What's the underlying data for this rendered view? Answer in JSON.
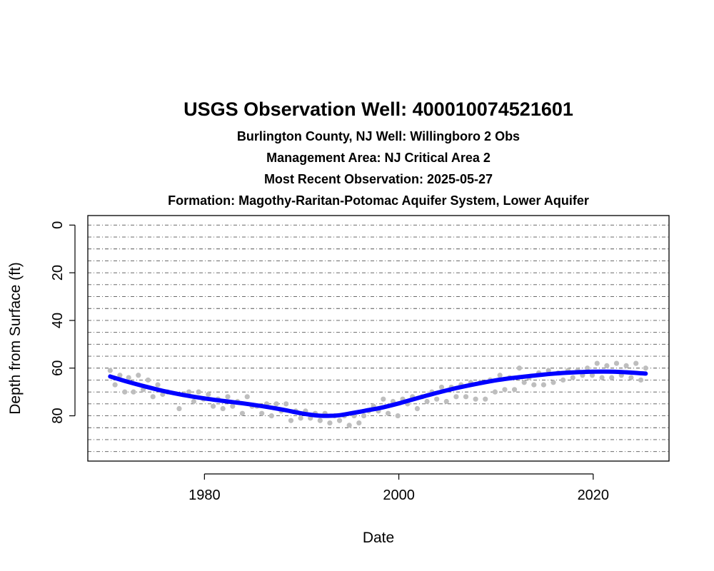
{
  "chart_data": {
    "type": "scatter",
    "title": "USGS Observation Well:  400010074521601",
    "subtitles": [
      "Burlington County, NJ    Well: Willingboro 2 Obs",
      "Management Area: NJ Critical Area 2",
      "Most Recent Observation: 2025-05-27",
      "Formation: Magothy-Raritan-Potomac Aquifer System, Lower Aquifer"
    ],
    "xlabel": "Date",
    "ylabel": "Depth from Surface (ft)",
    "xlim": [
      1968.0,
      2027.8
    ],
    "ylim": [
      99,
      -4
    ],
    "y_reversed": true,
    "x_ticks": [
      1980,
      2000,
      2020
    ],
    "y_ticks": [
      0,
      20,
      40,
      60,
      80
    ],
    "gridlines_y": [
      0,
      5,
      10,
      15,
      20,
      25,
      30,
      35,
      40,
      45,
      50,
      55,
      60,
      65,
      70,
      75,
      80,
      85,
      90,
      95
    ],
    "grid": "horizontal dash-dot",
    "series": [
      {
        "kind": "points",
        "color": "#bebebe",
        "x": [
          1970.3,
          1970.8,
          1971.3,
          1971.8,
          1972.2,
          1972.7,
          1973.2,
          1973.7,
          1974.2,
          1974.7,
          1975.2,
          1975.7,
          1976.2,
          1977.4,
          1977.9,
          1978.4,
          1978.9,
          1979.4,
          1979.9,
          1980.4,
          1980.9,
          1981.4,
          1981.9,
          1982.4,
          1982.9,
          1983.4,
          1983.9,
          1984.4,
          1984.9,
          1985.4,
          1985.9,
          1986.4,
          1986.9,
          1987.4,
          1987.9,
          1988.4,
          1988.9,
          1989.4,
          1989.9,
          1990.4,
          1990.9,
          1991.4,
          1991.9,
          1992.4,
          1992.9,
          1993.4,
          1993.9,
          1994.4,
          1994.9,
          1995.4,
          1995.9,
          1996.4,
          1996.9,
          1997.4,
          1997.9,
          1998.4,
          1998.9,
          1999.4,
          1999.9,
          2000.4,
          2000.9,
          2001.4,
          2001.9,
          2002.4,
          2002.9,
          2003.4,
          2003.9,
          2004.4,
          2004.9,
          2005.4,
          2005.9,
          2006.4,
          2006.9,
          2007.4,
          2007.9,
          2008.4,
          2008.9,
          2009.4,
          2009.9,
          2010.4,
          2010.9,
          2011.4,
          2011.9,
          2012.4,
          2012.9,
          2013.4,
          2013.9,
          2014.4,
          2014.9,
          2015.4,
          2015.9,
          2016.4,
          2016.9,
          2017.4,
          2017.9,
          2018.4,
          2018.9,
          2019.4,
          2019.9,
          2020.4,
          2020.9,
          2021.4,
          2021.9,
          2022.4,
          2022.9,
          2023.4,
          2023.9,
          2024.4,
          2024.9,
          2025.4
        ],
        "y": [
          61,
          67,
          63,
          70,
          64,
          70,
          63,
          69,
          65,
          72,
          67,
          71,
          70,
          77,
          71,
          70,
          74,
          70,
          73,
          71,
          76,
          73,
          77,
          72,
          76,
          74,
          79,
          72,
          76,
          76,
          79,
          75,
          80,
          75,
          78,
          75,
          82,
          78,
          81,
          78,
          81,
          79,
          82,
          79,
          83,
          80,
          82,
          80,
          84,
          80,
          83,
          80,
          78,
          76,
          78,
          73,
          79,
          74,
          80,
          73,
          75,
          72,
          77,
          72,
          74,
          70,
          73,
          68,
          74,
          68,
          72,
          67,
          72,
          66,
          73,
          66,
          73,
          65,
          70,
          63,
          69,
          64,
          69,
          60,
          66,
          64,
          67,
          62,
          67,
          61,
          66,
          62,
          65,
          61,
          64,
          61,
          63,
          60,
          63,
          58,
          64,
          59,
          64,
          58,
          63,
          59,
          64,
          58,
          65,
          60
        ]
      },
      {
        "kind": "smooth-line",
        "color": "#0000ff",
        "x": [
          1970.3,
          1972,
          1974,
          1976,
          1978,
          1980,
          1982,
          1984,
          1986,
          1988,
          1990,
          1991,
          1992,
          1993,
          1994,
          1995,
          1996,
          1997,
          1998,
          2000,
          2002,
          2004,
          2006,
          2008,
          2010,
          2012,
          2014,
          2016,
          2018,
          2020,
          2022,
          2024,
          2025.4
        ],
        "y": [
          63.5,
          65.6,
          67.8,
          69.8,
          71.4,
          72.7,
          73.8,
          74.8,
          76.0,
          77.4,
          79.0,
          79.6,
          80.0,
          80.0,
          79.7,
          79.0,
          78.3,
          77.5,
          76.8,
          74.8,
          72.5,
          70.3,
          68.3,
          66.6,
          65.1,
          64.0,
          63.1,
          62.3,
          61.8,
          61.5,
          61.5,
          61.9,
          62.3
        ]
      }
    ]
  }
}
